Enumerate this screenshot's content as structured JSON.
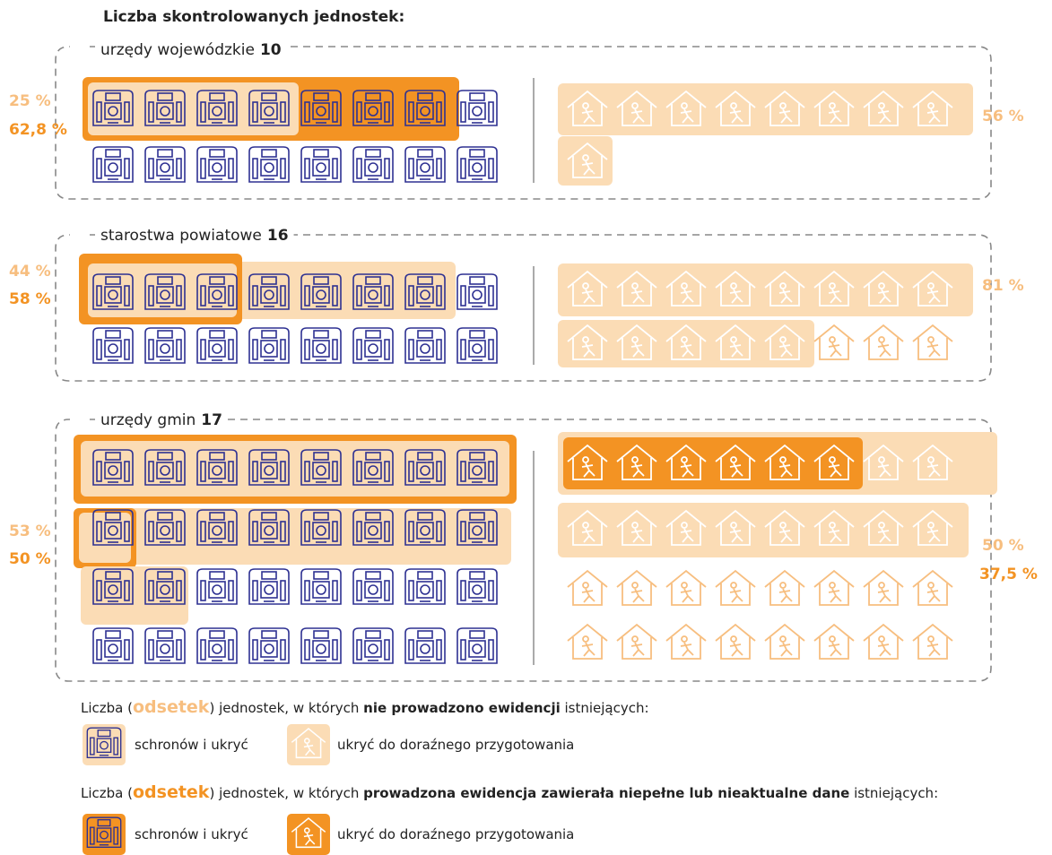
{
  "title": "Liczba skontrolowanych jednostek:",
  "groups": [
    {
      "name": "urzędy wojewódzkie",
      "count": "10",
      "left_light": "25 %",
      "left_dark": "62,8 %",
      "right_light": "56 %"
    },
    {
      "name": "starostwa powiatowe",
      "count": "16",
      "left_light": "44 %",
      "left_dark": "58 %",
      "right_light": "81 %"
    },
    {
      "name": "urzędy gmin",
      "count": "17",
      "left_light": "53 %",
      "left_dark": "50 %",
      "right_light": "50 %",
      "right_dark": "37,5 %"
    }
  ],
  "legend": [
    {
      "parts": [
        "Liczba (",
        "odsetek",
        ")  jednostek, w których ",
        "nie prowadzono ewidencji",
        " istniejących:"
      ],
      "items": [
        "schronów i ukryć",
        "ukryć do doraźnego przygotowania"
      ]
    },
    {
      "parts": [
        "Liczba  (",
        "odsetek",
        ") jednostek, w których ",
        "prowadzona ewidencja  zawierała niepełne lub nieaktualne dane",
        "  istniejących:"
      ],
      "items": [
        "schronów i ukryć",
        "ukryć do doraźnego przygotowania"
      ]
    }
  ]
}
